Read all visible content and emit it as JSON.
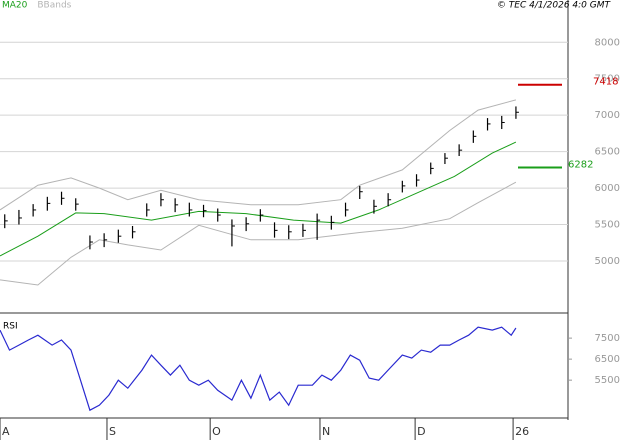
{
  "chart_data": [
    {
      "type": "ohlc",
      "subtitle": "© TEC 4/1/2026 4:0 GMT",
      "color": "#000000",
      "xlim": [
        0,
        120
      ],
      "ylim": [
        4300,
        8580
      ],
      "yticks": [
        5000,
        5500,
        6000,
        6500,
        7000,
        7500,
        8000
      ],
      "grid": true,
      "x": [
        1,
        4,
        7,
        10,
        13,
        16,
        19,
        22,
        25,
        28,
        31,
        34,
        37,
        40,
        43,
        46,
        49,
        52,
        55,
        58,
        61,
        64,
        67,
        70,
        73,
        76,
        79,
        82,
        85,
        88,
        91,
        94,
        97,
        100,
        103,
        106,
        109
      ],
      "high": [
        5640,
        5700,
        5780,
        5880,
        5950,
        5860,
        5350,
        5380,
        5430,
        5480,
        5790,
        5930,
        5860,
        5800,
        5770,
        5720,
        5570,
        5600,
        5710,
        5530,
        5490,
        5510,
        5650,
        5620,
        5800,
        6030,
        5840,
        5930,
        6100,
        6190,
        6350,
        6480,
        6600,
        6790,
        6960,
        6990,
        7120
      ],
      "low": [
        5450,
        5500,
        5610,
        5690,
        5770,
        5690,
        5160,
        5190,
        5250,
        5310,
        5610,
        5750,
        5670,
        5610,
        5600,
        5540,
        5200,
        5410,
        5540,
        5320,
        5300,
        5330,
        5290,
        5430,
        5610,
        5850,
        5650,
        5750,
        5940,
        6020,
        6190,
        6330,
        6440,
        6620,
        6790,
        6810,
        6950
      ],
      "close": [
        5550,
        5590,
        5700,
        5790,
        5860,
        5780,
        5260,
        5290,
        5340,
        5400,
        5700,
        5840,
        5770,
        5700,
        5690,
        5630,
        5480,
        5510,
        5630,
        5420,
        5400,
        5420,
        5560,
        5530,
        5700,
        5950,
        5750,
        5840,
        6030,
        6110,
        6270,
        6410,
        6520,
        6710,
        6880,
        6900,
        7040
      ],
      "series": [
        {
          "name": "MA20",
          "color": "#1a9e1a",
          "x": [
            0,
            8,
            16,
            22,
            32,
            42,
            52,
            62,
            72,
            80,
            88,
            96,
            104,
            109
          ],
          "values": [
            5070,
            5340,
            5660,
            5650,
            5560,
            5680,
            5650,
            5560,
            5520,
            5700,
            5930,
            6160,
            6480,
            6630
          ]
        },
        {
          "name": "BBands",
          "color": "#b4b4b4",
          "x": [
            0,
            8,
            15,
            21,
            27,
            34,
            42,
            53,
            63,
            72,
            76,
            85,
            95,
            101,
            109
          ],
          "upper": [
            5700,
            6040,
            6140,
            6000,
            5840,
            5970,
            5840,
            5770,
            5770,
            5840,
            6040,
            6250,
            6790,
            7070,
            7210
          ],
          "lower": [
            4740,
            4670,
            5050,
            5290,
            5220,
            5150,
            5490,
            5290,
            5290,
            5360,
            5390,
            5450,
            5580,
            5800,
            6080
          ]
        }
      ],
      "levels": [
        {
          "value": 7418,
          "label": "7418",
          "color": "#cc0000"
        },
        {
          "value": 6282,
          "label": "6282",
          "color": "#1a9e1a"
        }
      ]
    },
    {
      "type": "line",
      "title": "RSI",
      "color": "#2a2ad0",
      "xlim": [
        0,
        120
      ],
      "ylim": [
        3700,
        8600
      ],
      "yticks": [
        7500,
        6500,
        5500
      ],
      "xticks": [
        {
          "value": 0,
          "label": "A"
        },
        {
          "value": 22.6,
          "label": "S"
        },
        {
          "value": 44.4,
          "label": "O"
        },
        {
          "value": 67.6,
          "label": "N"
        },
        {
          "value": 87.7,
          "label": "D"
        },
        {
          "value": 108.4,
          "label": "26"
        }
      ],
      "x": [
        0,
        2,
        4,
        6,
        8,
        11,
        13,
        15,
        17,
        19,
        21,
        23,
        25,
        27,
        30,
        32,
        34,
        36,
        38,
        40,
        42,
        44,
        46,
        49,
        51,
        53,
        55,
        57,
        59,
        61,
        63,
        66,
        68,
        70,
        72,
        74,
        76,
        78,
        80,
        82,
        85,
        87,
        89,
        91,
        93,
        95,
        97,
        99,
        101,
        104,
        106,
        108,
        109
      ],
      "values": [
        7880,
        6930,
        7170,
        7410,
        7640,
        7170,
        7410,
        6930,
        5500,
        4070,
        4310,
        4790,
        5500,
        5120,
        5980,
        6690,
        6210,
        5740,
        6210,
        5500,
        5260,
        5500,
        5020,
        4550,
        5500,
        4640,
        5740,
        4550,
        4930,
        4310,
        5260,
        5260,
        5740,
        5500,
        5980,
        6690,
        6450,
        5600,
        5500,
        5980,
        6690,
        6550,
        6930,
        6830,
        7170,
        7170,
        7410,
        7640,
        8020,
        7880,
        8020,
        7640,
        7980
      ]
    }
  ]
}
